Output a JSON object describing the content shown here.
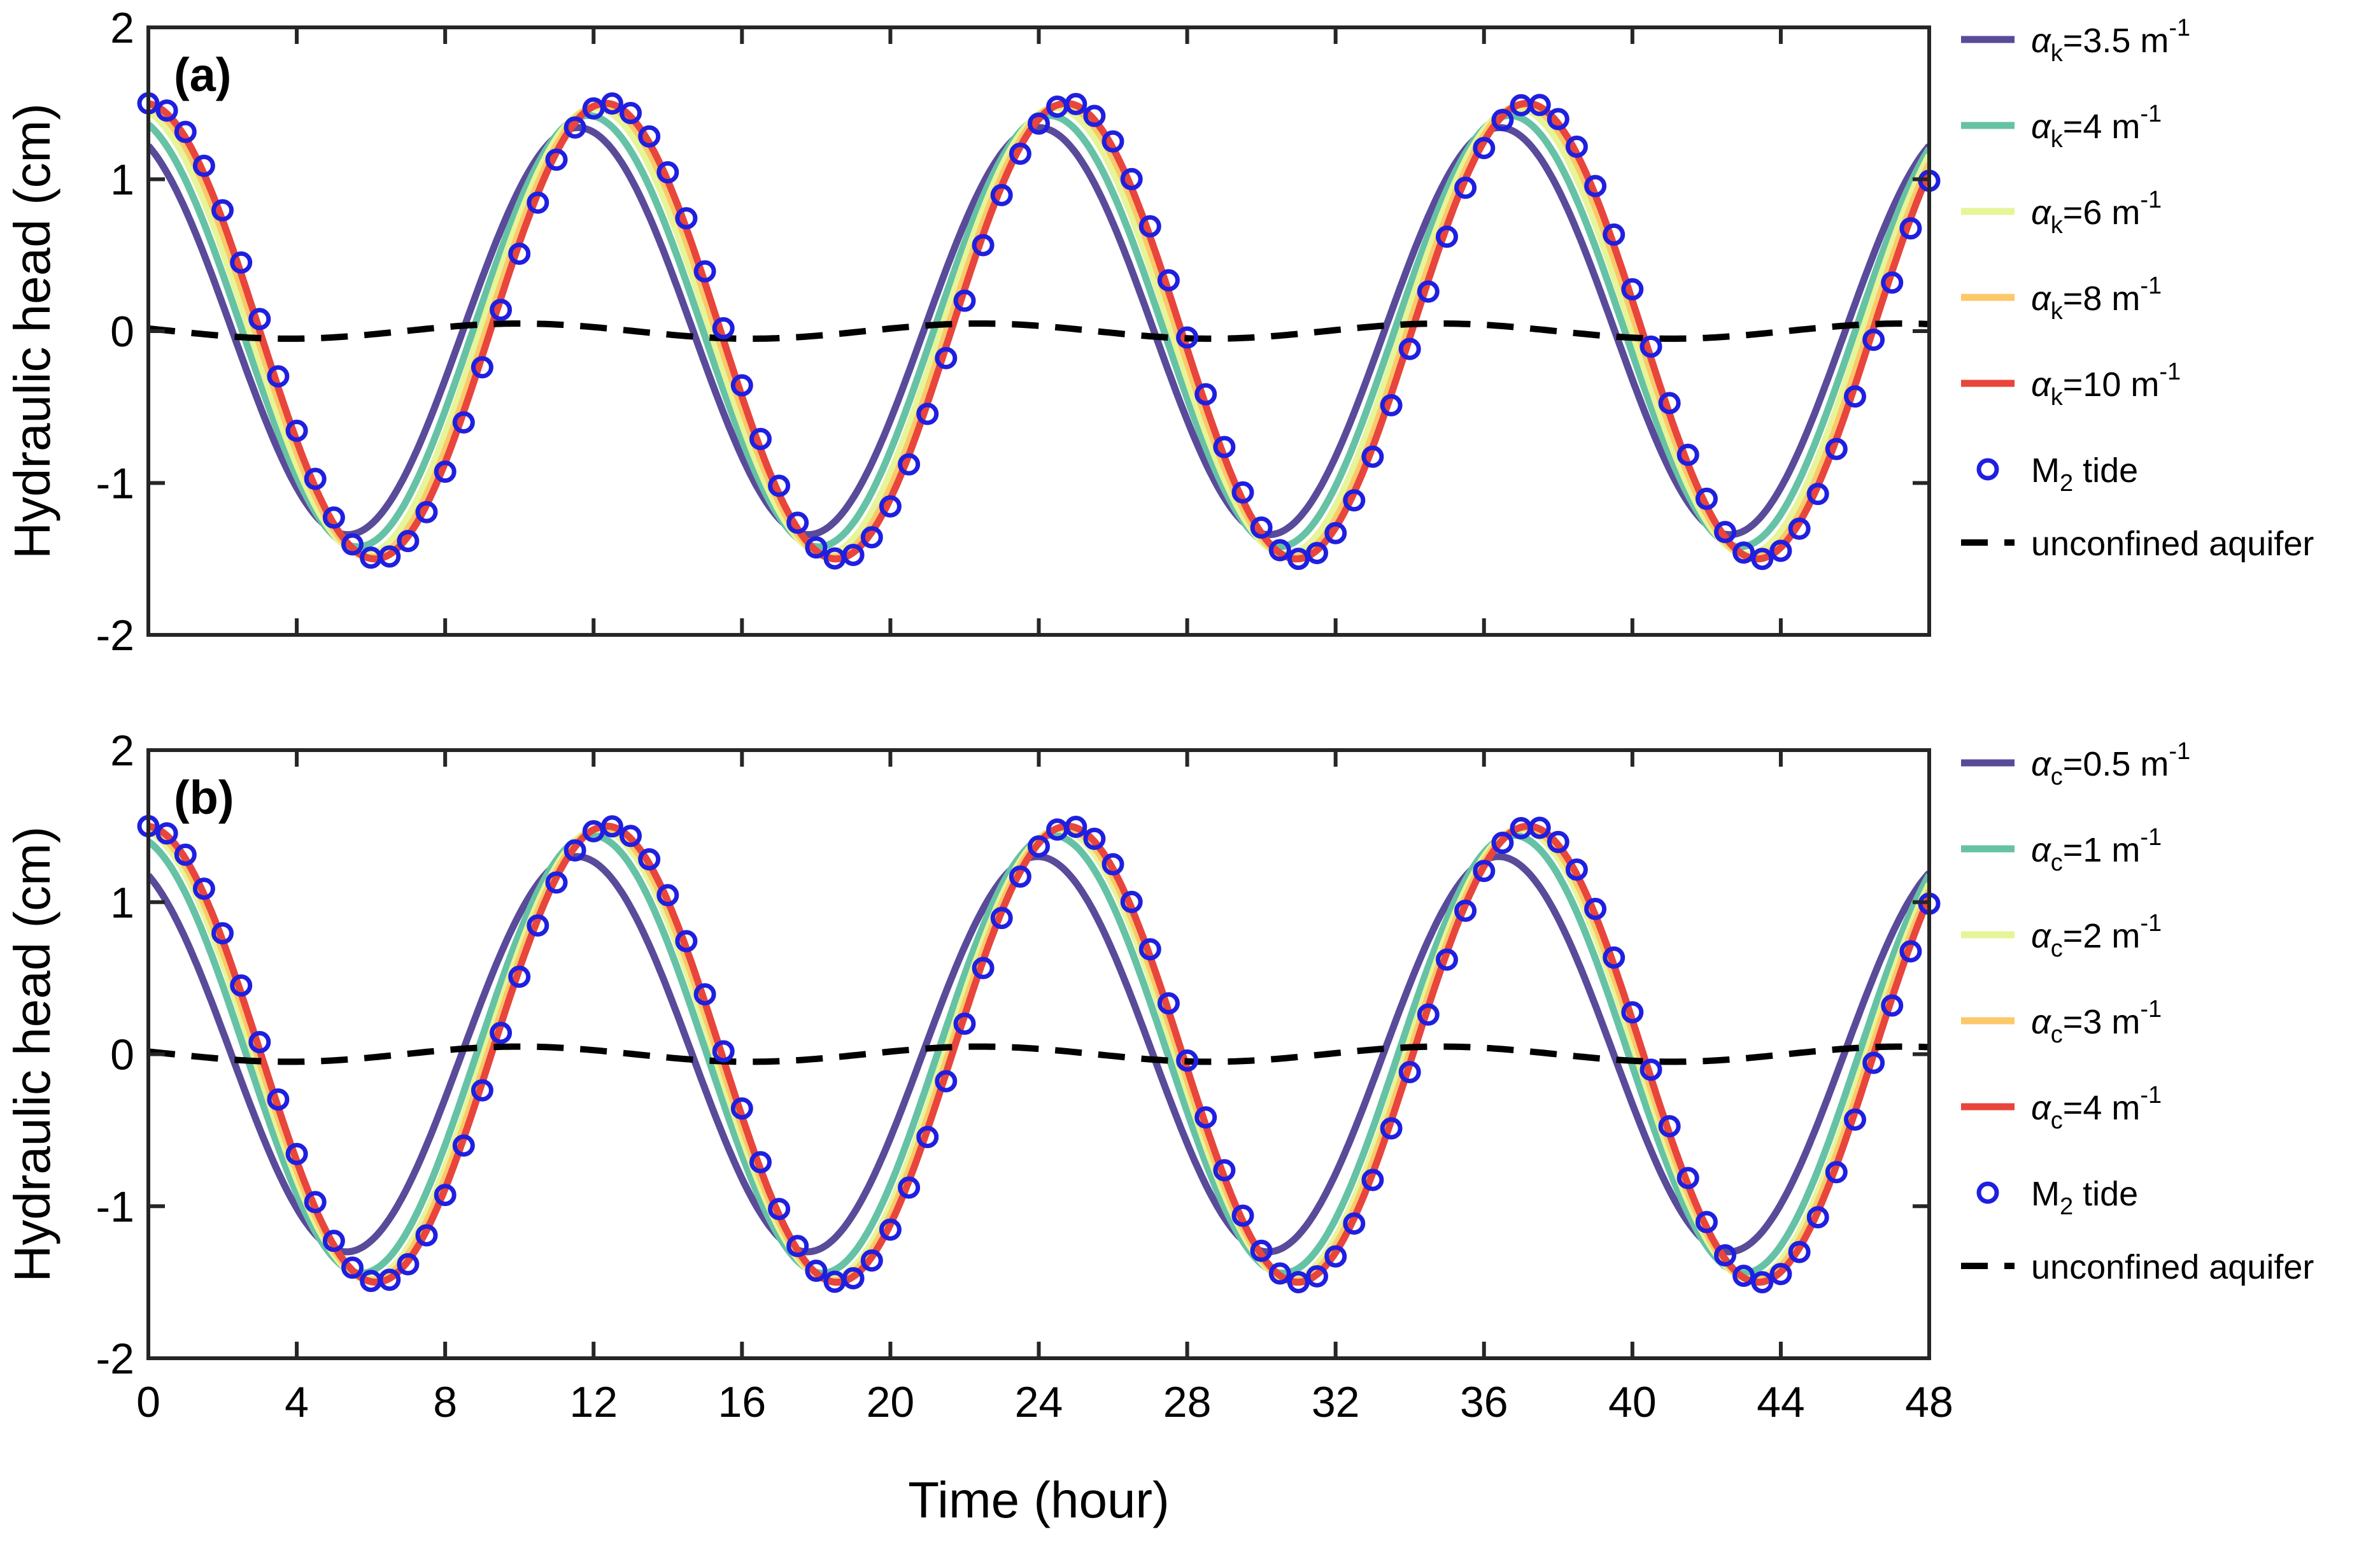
{
  "chart_data": [
    {
      "type": "line",
      "panel_label": "(a)",
      "xlabel": "",
      "ylabel": "Hydraulic head (cm)",
      "xlim": [
        0,
        48
      ],
      "ylim": [
        -2,
        2
      ],
      "xticks": [
        "0",
        "4",
        "8",
        "12",
        "16",
        "20",
        "24",
        "28",
        "32",
        "36",
        "40",
        "44",
        "48"
      ],
      "yticks": [
        "2",
        "1",
        "0",
        "-1",
        "-2"
      ],
      "x_tick_labels_shown": false,
      "tide_period_hours": 12.42,
      "series": [
        {
          "name": "αk=3.5 m-1",
          "label": {
            "greek": "α",
            "sub": "k",
            "value": "=3.5 m",
            "sup": "-1"
          },
          "color": "#5a4a9a",
          "amplitude": 1.34,
          "peak_time_hours": 11.58
        },
        {
          "name": "αk=4 m-1",
          "label": {
            "greek": "α",
            "sub": "k",
            "value": "=4 m",
            "sup": "-1"
          },
          "color": "#66c2a5",
          "amplitude": 1.42,
          "peak_time_hours": 11.85
        },
        {
          "name": "αk=6 m-1",
          "label": {
            "greek": "α",
            "sub": "k",
            "value": "=6 m",
            "sup": "-1"
          },
          "color": "#e6f598",
          "amplitude": 1.47,
          "peak_time_hours": 12.05
        },
        {
          "name": "αk=8 m-1",
          "label": {
            "greek": "α",
            "sub": "k",
            "value": "=8 m",
            "sup": "-1"
          },
          "color": "#fdc86a",
          "amplitude": 1.49,
          "peak_time_hours": 12.2
        },
        {
          "name": "αk=10 m-1",
          "label": {
            "greek": "α",
            "sub": "k",
            "value": "=10 m",
            "sup": "-1"
          },
          "color": "#e8453c",
          "amplitude": 1.5,
          "peak_time_hours": 12.32
        }
      ],
      "markers": {
        "name": "M2 tide",
        "label": {
          "text": "M",
          "sub": "2",
          "rest": " tide"
        },
        "color": "#1f1fe0",
        "amplitude": 1.5,
        "peak_time_hours": 12.42,
        "x_step_hours": 0.5,
        "x_start": 0,
        "x_end": 48
      },
      "dashed": {
        "name": "unconfined aquifer",
        "color": "#000000",
        "amplitude": 0.05,
        "peak_time_hours": 10.0
      },
      "legend_position": "outside-right"
    },
    {
      "type": "line",
      "panel_label": "(b)",
      "xlabel": "Time (hour)",
      "ylabel": "Hydraulic head (cm)",
      "xlim": [
        0,
        48
      ],
      "ylim": [
        -2,
        2
      ],
      "xticks": [
        "0",
        "4",
        "8",
        "12",
        "16",
        "20",
        "24",
        "28",
        "32",
        "36",
        "40",
        "44",
        "48"
      ],
      "yticks": [
        "2",
        "1",
        "0",
        "-1",
        "-2"
      ],
      "x_tick_labels_shown": true,
      "tide_period_hours": 12.42,
      "series": [
        {
          "name": "αc=0.5 m-1",
          "label": {
            "greek": "α",
            "sub": "c",
            "value": "=0.5 m",
            "sup": "-1"
          },
          "color": "#5a4a9a",
          "amplitude": 1.3,
          "peak_time_hours": 11.55
        },
        {
          "name": "αc=1 m-1",
          "label": {
            "greek": "α",
            "sub": "c",
            "value": "=1 m",
            "sup": "-1"
          },
          "color": "#66c2a5",
          "amplitude": 1.44,
          "peak_time_hours": 11.95
        },
        {
          "name": "αc=2 m-1",
          "label": {
            "greek": "α",
            "sub": "c",
            "value": "=2 m",
            "sup": "-1"
          },
          "color": "#e6f598",
          "amplitude": 1.48,
          "peak_time_hours": 12.15
        },
        {
          "name": "αc=3 m-1",
          "label": {
            "greek": "α",
            "sub": "c",
            "value": "=3 m",
            "sup": "-1"
          },
          "color": "#fdc86a",
          "amplitude": 1.49,
          "peak_time_hours": 12.25
        },
        {
          "name": "αc=4 m-1",
          "label": {
            "greek": "α",
            "sub": "c",
            "value": "=4 m",
            "sup": "-1"
          },
          "color": "#e8453c",
          "amplitude": 1.5,
          "peak_time_hours": 12.35
        }
      ],
      "markers": {
        "name": "M2 tide",
        "label": {
          "text": "M",
          "sub": "2",
          "rest": " tide"
        },
        "color": "#1f1fe0",
        "amplitude": 1.5,
        "peak_time_hours": 12.42,
        "x_step_hours": 0.5,
        "x_start": 0,
        "x_end": 48
      },
      "dashed": {
        "name": "unconfined aquifer",
        "color": "#000000",
        "amplitude": 0.05,
        "peak_time_hours": 10.0
      },
      "legend_position": "outside-right"
    }
  ]
}
